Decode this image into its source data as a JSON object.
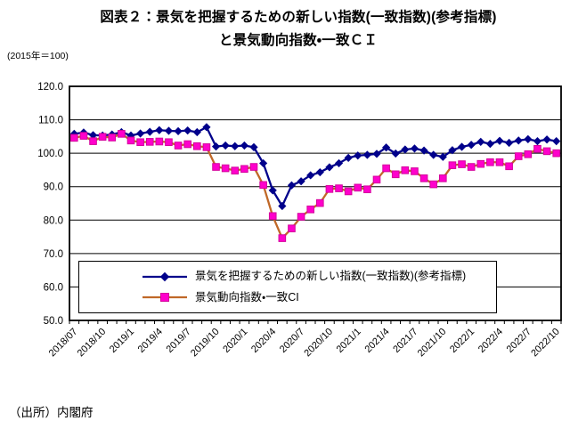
{
  "title": {
    "line1": "図表２：景気を把握するための新しい指数(一致指数)(参考指標)",
    "line2": "と景気動向指数・一致ＣＩ"
  },
  "axis_note": "(2015年＝100)",
  "source": "（出所）内閣府",
  "chart_data": {
    "type": "line",
    "title": "図表２：景気を把握するための新しい指数(一致指数)(参考指標)と景気動向指数・一致ＣＩ",
    "ylabel": "(2015年＝100)",
    "ylim": [
      50,
      120
    ],
    "ytick_step": 10,
    "ytick_labels": [
      "120.0",
      "110.0",
      "100.0",
      "90.0",
      "80.0",
      "70.0",
      "60.0",
      "50.0"
    ],
    "grid": "horizontal",
    "legend_position": "inside-bottom",
    "x_tick_every": 3,
    "x": [
      "2018/07",
      "2018/08",
      "2018/09",
      "2018/10",
      "2018/11",
      "2018/12",
      "2019/1",
      "2019/2",
      "2019/3",
      "2019/4",
      "2019/5",
      "2019/6",
      "2019/7",
      "2019/8",
      "2019/9",
      "2019/10",
      "2019/11",
      "2019/12",
      "2020/1",
      "2020/2",
      "2020/3",
      "2020/4",
      "2020/5",
      "2020/6",
      "2020/7",
      "2020/8",
      "2020/9",
      "2020/10",
      "2020/11",
      "2020/12",
      "2021/1",
      "2021/2",
      "2021/3",
      "2021/4",
      "2021/5",
      "2021/6",
      "2021/7",
      "2021/8",
      "2021/9",
      "2021/10",
      "2021/11",
      "2021/12",
      "2022/1",
      "2022/2",
      "2022/3",
      "2022/4",
      "2022/5",
      "2022/6",
      "2022/7",
      "2022/8",
      "2022/9",
      "2022/10"
    ],
    "shown_x_ticks": [
      "2018/07",
      "2018/10",
      "2019/1",
      "2019/4",
      "2019/7",
      "2019/10",
      "2020/1",
      "2020/4",
      "2020/7",
      "2020/10",
      "2021/1",
      "2021/4",
      "2021/7",
      "2021/10",
      "2022/1",
      "2022/4",
      "2022/7",
      "2022/10"
    ],
    "series": [
      {
        "name": "景気を把握するための新しい指数(一致指数)(参考指標)",
        "marker": "diamond",
        "line_color": "#00008B",
        "marker_color": "#00008B",
        "values": [
          105.8,
          106.2,
          105.4,
          105.3,
          105.6,
          106.3,
          105.3,
          105.9,
          106.4,
          106.9,
          106.7,
          106.6,
          106.8,
          106.3,
          107.8,
          102.0,
          102.3,
          102.1,
          102.3,
          101.8,
          97.0,
          88.9,
          84.2,
          90.4,
          91.6,
          93.4,
          94.3,
          95.8,
          97.0,
          98.6,
          99.3,
          99.5,
          99.8,
          101.7,
          99.9,
          101.1,
          101.4,
          100.8,
          99.5,
          98.9,
          100.9,
          101.9,
          102.5,
          103.4,
          102.8,
          103.7,
          103.1,
          103.8,
          104.2,
          103.6,
          104.1,
          103.6
        ]
      },
      {
        "name": "景気動向指数・一致CI",
        "marker": "square",
        "line_color": "#C06828",
        "marker_color": "#FF00CC",
        "marker_edge": "#D4009B",
        "values": [
          104.6,
          105.2,
          103.6,
          104.9,
          104.7,
          105.8,
          103.8,
          103.3,
          103.4,
          103.5,
          103.3,
          102.3,
          102.7,
          102.1,
          101.8,
          95.9,
          95.5,
          94.8,
          95.3,
          95.9,
          90.5,
          81.2,
          74.6,
          77.5,
          81.0,
          83.2,
          85.1,
          89.3,
          89.5,
          88.6,
          89.7,
          89.2,
          92.1,
          95.5,
          93.7,
          94.9,
          94.6,
          92.5,
          90.7,
          92.5,
          96.4,
          96.7,
          95.9,
          96.8,
          97.3,
          97.3,
          96.1,
          99.1,
          99.7,
          101.3,
          100.6,
          100.0
        ]
      }
    ]
  }
}
